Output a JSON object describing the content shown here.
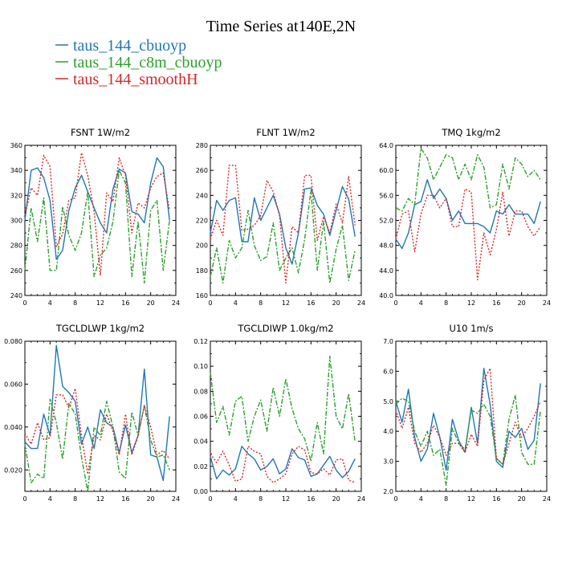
{
  "figure": {
    "title": "Time Series at140E,2N"
  },
  "legend": [
    {
      "label": "taus_144_cbuoyp",
      "color": "#1f77b4",
      "style": "solid"
    },
    {
      "label": "taus_144_c8m_cbuoyp",
      "color": "#2ca02c",
      "style": "dashdot"
    },
    {
      "label": "taus_144_smoothH",
      "color": "#d62728",
      "style": "dotted"
    }
  ],
  "chart_data": [
    {
      "type": "line",
      "title": "FSNT   1W/m2",
      "xlim": [
        0,
        24
      ],
      "xticks": [
        0,
        4,
        8,
        12,
        16,
        20,
        24
      ],
      "xtick_labels": [
        "0",
        "4",
        "8",
        "12",
        "16",
        "20",
        "24"
      ],
      "ylim": [
        240,
        360
      ],
      "yticks": [
        240,
        260,
        280,
        300,
        320,
        340,
        360
      ],
      "ytick_labels": [
        "240",
        "260",
        "280",
        "300",
        "320",
        "340",
        "360"
      ],
      "x": [
        0,
        1,
        2,
        3,
        4,
        5,
        6,
        7,
        8,
        9,
        10,
        11,
        12,
        13,
        14,
        15,
        16,
        17,
        18,
        19,
        20,
        21,
        22,
        23
      ],
      "series": [
        {
          "name": "taus_144_cbuoyp",
          "values": [
            300,
            340,
            342,
            334,
            316,
            269,
            276,
            308,
            326,
            336,
            323,
            310,
            298,
            290,
            325,
            341,
            338,
            307,
            305,
            298,
            330,
            350,
            343,
            300
          ]
        },
        {
          "name": "taus_144_c8m_cbuoyp",
          "values": [
            260,
            310,
            283,
            318,
            260,
            260,
            311,
            288,
            276,
            290,
            323,
            255,
            272,
            278,
            299,
            340,
            330,
            255,
            299,
            250,
            308,
            316,
            260,
            300
          ]
        },
        {
          "name": "taus_144_smoothH",
          "values": [
            304,
            326,
            320,
            352,
            343,
            279,
            289,
            316,
            318,
            354,
            336,
            307,
            256,
            322,
            315,
            350,
            336,
            290,
            314,
            310,
            326,
            335,
            338,
            308
          ]
        }
      ]
    },
    {
      "type": "line",
      "title": "FLNT   1W/m2",
      "xlim": [
        0,
        24
      ],
      "xticks": [
        0,
        4,
        8,
        12,
        16,
        20,
        24
      ],
      "xtick_labels": [
        "0",
        "4",
        "8",
        "12",
        "16",
        "20",
        "24"
      ],
      "ylim": [
        160,
        280
      ],
      "yticks": [
        160,
        180,
        200,
        220,
        240,
        260,
        280
      ],
      "ytick_labels": [
        "160",
        "180",
        "200",
        "220",
        "240",
        "260",
        "280"
      ],
      "x": [
        0,
        1,
        2,
        3,
        4,
        5,
        6,
        7,
        8,
        9,
        10,
        11,
        12,
        13,
        14,
        15,
        16,
        17,
        18,
        19,
        20,
        21,
        22,
        23
      ],
      "series": [
        {
          "name": "taus_144_cbuoyp",
          "values": [
            210,
            236,
            228,
            236,
            238,
            203,
            203,
            238,
            220,
            230,
            240,
            225,
            198,
            185,
            210,
            245,
            246,
            232,
            225,
            208,
            228,
            247,
            237,
            207
          ]
        },
        {
          "name": "taus_144_c8m_cbuoyp",
          "values": [
            175,
            198,
            170,
            204,
            190,
            198,
            228,
            200,
            188,
            191,
            218,
            180,
            190,
            198,
            178,
            205,
            244,
            180,
            219,
            170,
            197,
            216,
            172,
            196
          ]
        },
        {
          "name": "taus_144_smoothH",
          "values": [
            205,
            220,
            208,
            264,
            264,
            212,
            213,
            216,
            224,
            252,
            243,
            224,
            170,
            215,
            210,
            256,
            256,
            204,
            223,
            210,
            233,
            218,
            255,
            216
          ]
        }
      ]
    },
    {
      "type": "line",
      "title": "TMQ   1kg/m2",
      "xlim": [
        0,
        24
      ],
      "xticks": [
        0,
        4,
        8,
        12,
        16,
        20,
        24
      ],
      "xtick_labels": [
        "0",
        "4",
        "8",
        "12",
        "16",
        "20",
        "24"
      ],
      "ylim": [
        40,
        64
      ],
      "yticks": [
        40,
        44,
        48,
        52,
        56,
        60,
        64
      ],
      "ytick_labels": [
        "40.0",
        "44.0",
        "48.0",
        "52.0",
        "56.0",
        "60.0",
        "64.0"
      ],
      "x": [
        0,
        1,
        2,
        3,
        4,
        5,
        6,
        7,
        8,
        9,
        10,
        11,
        12,
        13,
        14,
        15,
        16,
        17,
        18,
        19,
        20,
        21,
        22,
        23
      ],
      "series": [
        {
          "name": "taus_144_cbuoyp",
          "values": [
            49,
            47.5,
            50,
            54.5,
            55,
            58.5,
            55.5,
            57,
            55.5,
            52,
            53.5,
            51.5,
            51.5,
            51.5,
            51,
            50,
            53.5,
            53,
            54.5,
            53,
            53,
            53,
            51.5,
            55
          ]
        },
        {
          "name": "taus_144_c8m_cbuoyp",
          "values": [
            54,
            53.5,
            55.5,
            54.5,
            63.5,
            62,
            58.5,
            60.5,
            62.5,
            62,
            58.5,
            61,
            58.5,
            62.5,
            60.5,
            54,
            54.5,
            61,
            57,
            62,
            61,
            59,
            60,
            58.5
          ]
        },
        {
          "name": "taus_144_smoothH",
          "values": [
            49,
            53,
            53.5,
            47,
            53,
            56,
            56,
            54,
            55.5,
            51,
            51,
            57,
            56.5,
            42.5,
            50,
            46.5,
            50.5,
            56.5,
            49.5,
            53.5,
            53.5,
            51,
            49.5,
            51
          ]
        }
      ]
    },
    {
      "type": "line",
      "title": "TGCLDLWP   1kg/m2",
      "xlim": [
        0,
        24
      ],
      "xticks": [
        0,
        4,
        8,
        12,
        16,
        20,
        24
      ],
      "xtick_labels": [
        "0",
        "4",
        "8",
        "12",
        "16",
        "20",
        "24"
      ],
      "ylim": [
        0.01,
        0.08
      ],
      "yticks": [
        0.02,
        0.04,
        0.06,
        0.08
      ],
      "ytick_labels": [
        "0.020",
        "0.040",
        "0.060",
        "0.080"
      ],
      "x": [
        0,
        1,
        2,
        3,
        4,
        5,
        6,
        7,
        8,
        9,
        10,
        11,
        12,
        13,
        14,
        15,
        16,
        17,
        18,
        19,
        20,
        21,
        22,
        23
      ],
      "series": [
        {
          "name": "taus_144_cbuoyp",
          "values": [
            0.033,
            0.03,
            0.03,
            0.046,
            0.036,
            0.078,
            0.059,
            0.056,
            0.052,
            0.032,
            0.04,
            0.03,
            0.048,
            0.042,
            0.04,
            0.028,
            0.041,
            0.028,
            0.036,
            0.067,
            0.027,
            0.026,
            0.015,
            0.045
          ]
        },
        {
          "name": "taus_144_c8m_cbuoyp",
          "values": [
            0.032,
            0.014,
            0.018,
            0.016,
            0.053,
            0.042,
            0.025,
            0.051,
            0.046,
            0.026,
            0.01,
            0.04,
            0.036,
            0.052,
            0.04,
            0.019,
            0.016,
            0.047,
            0.036,
            0.05,
            0.034,
            0.026,
            0.027,
            0.02
          ]
        },
        {
          "name": "taus_144_smoothH",
          "values": [
            0.037,
            0.032,
            0.042,
            0.034,
            0.035,
            0.055,
            0.055,
            0.049,
            0.058,
            0.036,
            0.018,
            0.036,
            0.034,
            0.046,
            0.038,
            0.027,
            0.046,
            0.027,
            0.036,
            0.05,
            0.04,
            0.027,
            0.029,
            0.025
          ]
        }
      ]
    },
    {
      "type": "line",
      "title": "TGCLDIWP   1.0kg/m2",
      "xlim": [
        0,
        24
      ],
      "xticks": [
        0,
        4,
        8,
        12,
        16,
        20,
        24
      ],
      "xtick_labels": [
        "0",
        "4",
        "8",
        "12",
        "16",
        "20",
        "24"
      ],
      "ylim": [
        0,
        0.12
      ],
      "yticks": [
        0,
        0.02,
        0.04,
        0.06,
        0.08,
        0.1,
        0.12
      ],
      "ytick_labels": [
        "0.00",
        "0.02",
        "0.04",
        "0.06",
        "0.08",
        "0.10",
        "0.12"
      ],
      "x": [
        0,
        1,
        2,
        3,
        4,
        5,
        6,
        7,
        8,
        9,
        10,
        11,
        12,
        13,
        14,
        15,
        16,
        17,
        18,
        19,
        20,
        21,
        22,
        23
      ],
      "series": [
        {
          "name": "taus_144_cbuoyp",
          "values": [
            0.028,
            0.01,
            0.017,
            0.013,
            0.018,
            0.036,
            0.03,
            0.026,
            0.017,
            0.02,
            0.026,
            0.014,
            0.018,
            0.034,
            0.027,
            0.025,
            0.012,
            0.014,
            0.021,
            0.028,
            0.017,
            0.011,
            0.016,
            0.026
          ]
        },
        {
          "name": "taus_144_c8m_cbuoyp",
          "values": [
            0.095,
            0.055,
            0.068,
            0.045,
            0.072,
            0.076,
            0.04,
            0.06,
            0.073,
            0.048,
            0.083,
            0.06,
            0.09,
            0.066,
            0.05,
            0.042,
            0.024,
            0.055,
            0.03,
            0.108,
            0.06,
            0.05,
            0.078,
            0.04
          ]
        },
        {
          "name": "taus_144_smoothH",
          "values": [
            0.03,
            0.023,
            0.032,
            0.021,
            0.008,
            0.01,
            0.036,
            0.032,
            0.03,
            0.012,
            0.007,
            0.01,
            0.014,
            0.03,
            0.036,
            0.033,
            0.015,
            0.014,
            0.018,
            0.013,
            0.025,
            0.026,
            0.009,
            0.007
          ]
        }
      ]
    },
    {
      "type": "line",
      "title": "U10   1m/s",
      "xlim": [
        0,
        24
      ],
      "xticks": [
        0,
        4,
        8,
        12,
        16,
        20,
        24
      ],
      "xtick_labels": [
        "0",
        "4",
        "8",
        "12",
        "16",
        "20",
        "24"
      ],
      "ylim": [
        2,
        7
      ],
      "yticks": [
        2,
        3,
        4,
        5,
        6,
        7
      ],
      "ytick_labels": [
        "2.0",
        "3.0",
        "4.0",
        "5.0",
        "6.0",
        "7.0"
      ],
      "x": [
        0,
        1,
        2,
        3,
        4,
        5,
        6,
        7,
        8,
        9,
        10,
        11,
        12,
        13,
        14,
        15,
        16,
        17,
        18,
        19,
        20,
        21,
        22,
        23
      ],
      "series": [
        {
          "name": "taus_144_cbuoyp",
          "values": [
            5.0,
            4.3,
            5.4,
            3.8,
            3.0,
            3.4,
            4.6,
            3.8,
            2.7,
            4.4,
            3.7,
            3.3,
            4.8,
            3.6,
            6.1,
            4.9,
            3.0,
            2.8,
            4.0,
            3.8,
            4.1,
            3.4,
            3.7,
            5.6
          ]
        },
        {
          "name": "taus_144_c8m_cbuoyp",
          "values": [
            4.9,
            5.1,
            5.0,
            4.0,
            3.5,
            4.0,
            3.2,
            3.4,
            2.2,
            4.1,
            3.6,
            3.4,
            4.7,
            4.6,
            4.9,
            4.5,
            3.1,
            2.9,
            4.4,
            5.2,
            3.3,
            2.9,
            2.9,
            4.7
          ]
        },
        {
          "name": "taus_144_smoothH",
          "values": [
            4.7,
            4.1,
            4.8,
            3.6,
            3.3,
            3.6,
            4.2,
            3.8,
            3.2,
            3.6,
            3.6,
            3.3,
            3.9,
            3.5,
            5.7,
            6.1,
            3.1,
            2.9,
            3.6,
            4.3,
            3.8,
            4.1,
            4.5,
            5.0
          ]
        }
      ]
    }
  ]
}
